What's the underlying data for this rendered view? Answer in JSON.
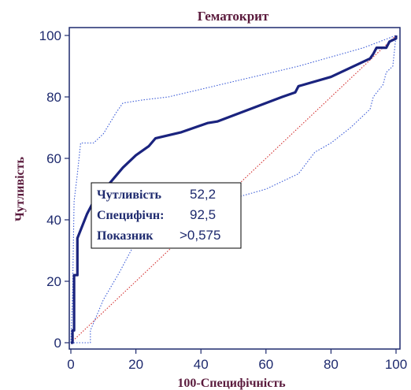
{
  "chart_data": {
    "type": "line",
    "title": "Гематокрит",
    "xlabel": "100-Специфічність",
    "ylabel": "Чутливість",
    "xlim": [
      0,
      100
    ],
    "ylim": [
      0,
      100
    ],
    "xticks": [
      "0",
      "20",
      "40",
      "60",
      "80",
      "100"
    ],
    "yticks": [
      "0",
      "20",
      "40",
      "60",
      "80",
      "100"
    ],
    "series": [
      {
        "role": "roc-curve",
        "color": "#1a237e",
        "style": "solid-thick",
        "points": [
          [
            0,
            0
          ],
          [
            0.5,
            0
          ],
          [
            0.5,
            4
          ],
          [
            1,
            4
          ],
          [
            1,
            22
          ],
          [
            2,
            22
          ],
          [
            2,
            34
          ],
          [
            5,
            42
          ],
          [
            7,
            46
          ],
          [
            12,
            52
          ],
          [
            16,
            57
          ],
          [
            20,
            61
          ],
          [
            24,
            64
          ],
          [
            26,
            66.5
          ],
          [
            34,
            68.5
          ],
          [
            42,
            71.5
          ],
          [
            45,
            72
          ],
          [
            65,
            80
          ],
          [
            69,
            81.5
          ],
          [
            70,
            83.5
          ],
          [
            80,
            86.5
          ],
          [
            92,
            92.5
          ],
          [
            93,
            94
          ],
          [
            94,
            96
          ],
          [
            97,
            96
          ],
          [
            98,
            98
          ],
          [
            100,
            99
          ],
          [
            100,
            100
          ]
        ]
      },
      {
        "role": "upper-ci",
        "color": "#3c5cd7",
        "style": "dotted",
        "points": [
          [
            0,
            0
          ],
          [
            0.5,
            15
          ],
          [
            1,
            46
          ],
          [
            2,
            55
          ],
          [
            3,
            65
          ],
          [
            7,
            65
          ],
          [
            10,
            68
          ],
          [
            14,
            75
          ],
          [
            16,
            78
          ],
          [
            22,
            79
          ],
          [
            30,
            80
          ],
          [
            40,
            82.5
          ],
          [
            50,
            85
          ],
          [
            60,
            87.5
          ],
          [
            70,
            90
          ],
          [
            80,
            93
          ],
          [
            90,
            96
          ],
          [
            95,
            98
          ],
          [
            100,
            100
          ]
        ]
      },
      {
        "role": "lower-ci",
        "color": "#3c5cd7",
        "style": "dotted",
        "points": [
          [
            0,
            0
          ],
          [
            5,
            0
          ],
          [
            6,
            0
          ],
          [
            6,
            4
          ],
          [
            10,
            14
          ],
          [
            15,
            23
          ],
          [
            20,
            33
          ],
          [
            26,
            39
          ],
          [
            30,
            41
          ],
          [
            40,
            44
          ],
          [
            50,
            47
          ],
          [
            60,
            50
          ],
          [
            70,
            55
          ],
          [
            75,
            62
          ],
          [
            80,
            65
          ],
          [
            86,
            70
          ],
          [
            92,
            76
          ],
          [
            93,
            80
          ],
          [
            96,
            84
          ],
          [
            97,
            88
          ],
          [
            99,
            90
          ],
          [
            100,
            100
          ]
        ]
      },
      {
        "role": "reference-diagonal",
        "color": "#d32f2f",
        "style": "dotted",
        "points": [
          [
            0,
            0
          ],
          [
            100,
            100
          ]
        ]
      }
    ],
    "operating_point_box": {
      "rows": [
        {
          "key": "Чутливість",
          "value": "52,2"
        },
        {
          "key": "Специфічн:",
          "value": "92,5"
        },
        {
          "key": "Показник",
          "value": ">0,575"
        }
      ]
    },
    "grid": false,
    "legend": "none"
  }
}
